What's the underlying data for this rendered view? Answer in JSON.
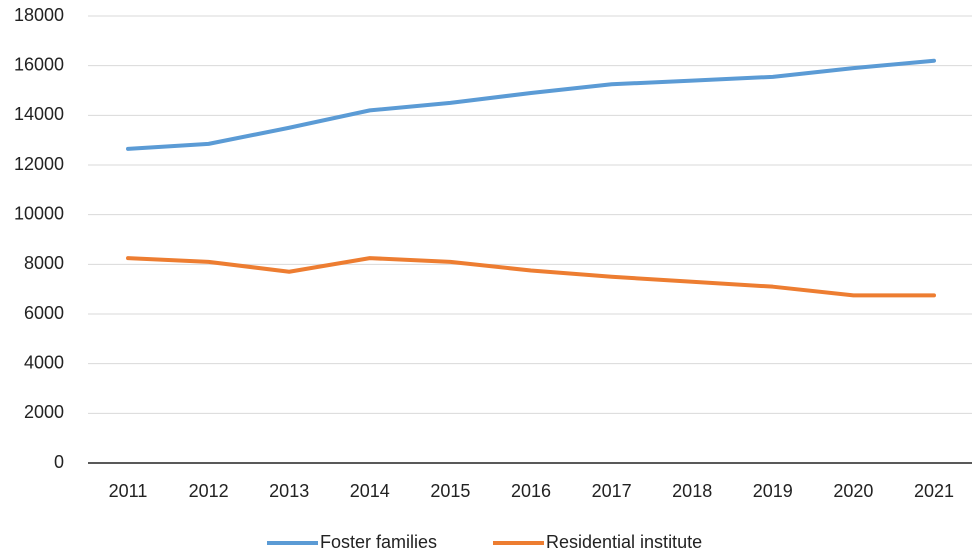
{
  "chart_data": {
    "type": "line",
    "categories": [
      "2011",
      "2012",
      "2013",
      "2014",
      "2015",
      "2016",
      "2017",
      "2018",
      "2019",
      "2020",
      "2021"
    ],
    "series": [
      {
        "name": "Foster families",
        "color": "#5b9bd5",
        "values": [
          12650,
          12850,
          13500,
          14200,
          14500,
          14900,
          15250,
          15400,
          15550,
          15900,
          16200
        ]
      },
      {
        "name": "Residential institute",
        "color": "#ed7d31",
        "values": [
          8250,
          8100,
          7700,
          8250,
          8100,
          7750,
          7500,
          7300,
          7100,
          6750,
          6750
        ]
      }
    ],
    "ylim": [
      0,
      18000
    ],
    "yticks": [
      0,
      2000,
      4000,
      6000,
      8000,
      10000,
      12000,
      14000,
      16000,
      18000
    ],
    "grid": true,
    "legend": "bottom"
  }
}
